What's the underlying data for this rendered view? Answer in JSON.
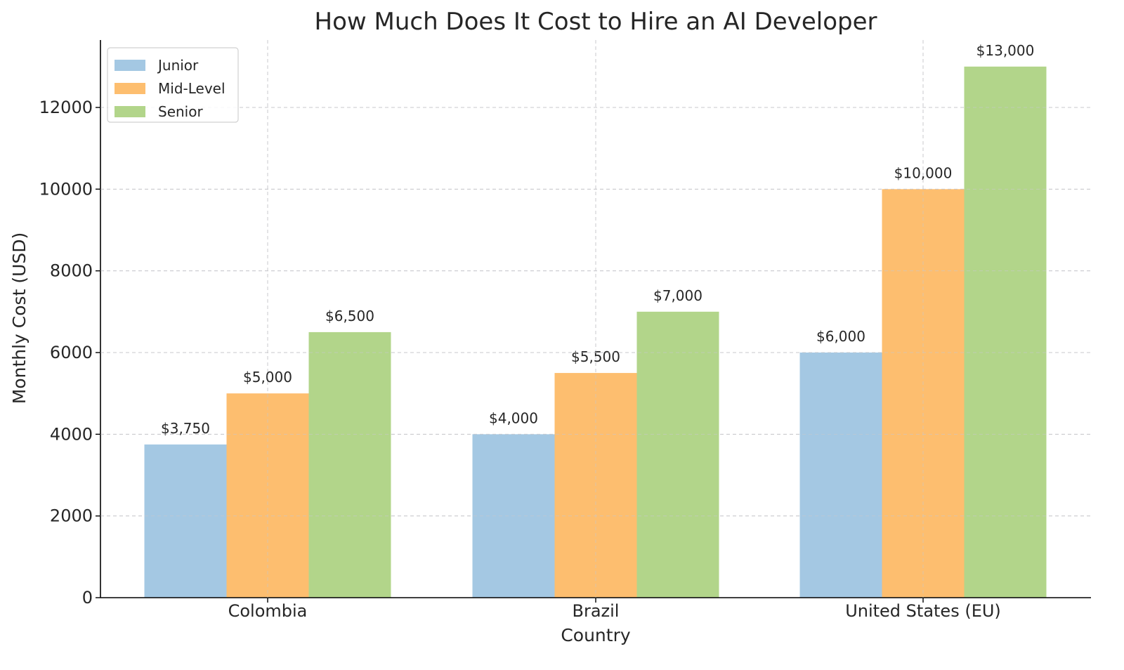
{
  "chart_data": {
    "type": "bar",
    "title": "How Much Does It Cost to Hire an AI Developer",
    "xlabel": "Country",
    "ylabel": "Monthly Cost (USD)",
    "categories": [
      "Colombia",
      "Brazil",
      "United States (EU)"
    ],
    "series": [
      {
        "name": "Junior",
        "values": [
          3750,
          4000,
          6000
        ],
        "labels": [
          "$3,750",
          "$4,000",
          "$6,000"
        ],
        "color": "#a4c8e3"
      },
      {
        "name": "Mid-Level",
        "values": [
          5000,
          5500,
          10000
        ],
        "labels": [
          "$5,000",
          "$5,500",
          "$10,000"
        ],
        "color": "#fdbe6f"
      },
      {
        "name": "Senior",
        "values": [
          6500,
          7000,
          13000
        ],
        "labels": [
          "$6,500",
          "$7,000",
          "$13,000"
        ],
        "color": "#b2d58a"
      }
    ],
    "yticks": [
      "0",
      "2000",
      "4000",
      "6000",
      "8000",
      "10000",
      "12000"
    ],
    "ylim": [
      0,
      13650
    ],
    "grid": true,
    "legend_position": "top-left"
  }
}
